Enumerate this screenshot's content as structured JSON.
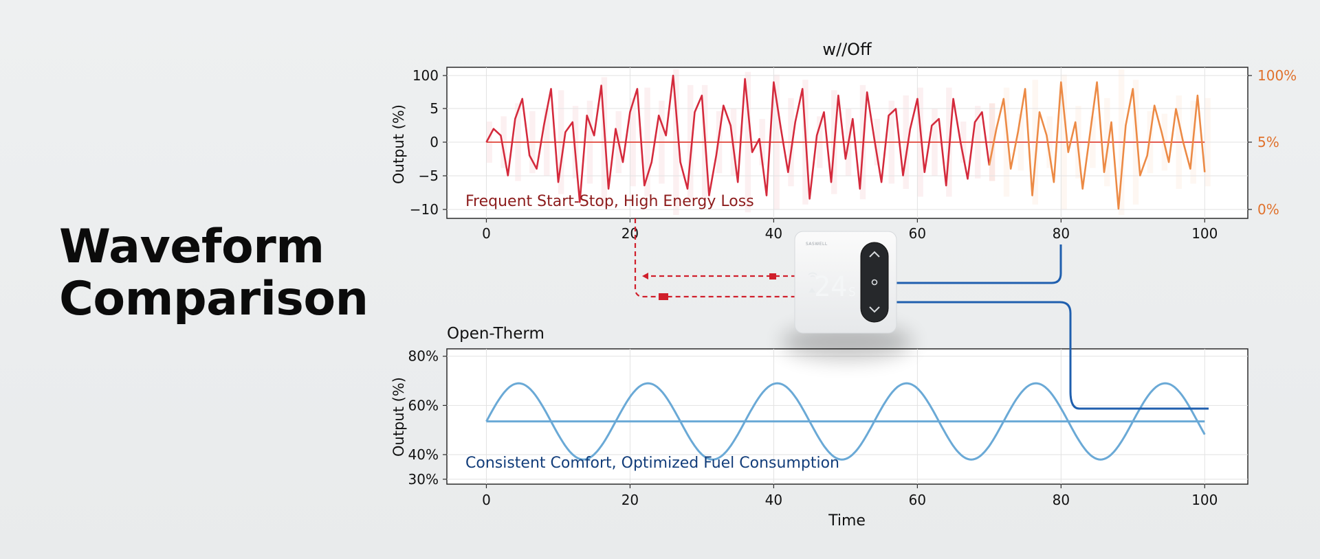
{
  "headline": {
    "line1": "Waveform",
    "line2": "Comparison"
  },
  "thermostat": {
    "brand": "SASWELL",
    "display": "24",
    "display_suffix": "S"
  },
  "colors": {
    "onoff_red": "#d42a3c",
    "onoff_orange": "#ec8a45",
    "opentherm_blue": "#6aa9d6",
    "connector_red": "#d01f2b",
    "connector_blue": "#1f5fae",
    "right_axis": "#e0712c"
  },
  "chart_data": [
    {
      "type": "line",
      "title": "w//Off",
      "xlabel": "",
      "ylabel": "Output (%)",
      "xlim": [
        -5.5,
        106
      ],
      "x_ticks": [
        0,
        20,
        40,
        60,
        80,
        100
      ],
      "y_ticks": [
        {
          "label": "100",
          "level": 2
        },
        {
          "label": "5",
          "level": 1
        },
        {
          "label": "0",
          "level": 0
        },
        {
          "label": "−5",
          "level": -1
        },
        {
          "label": "−10",
          "level": -2
        }
      ],
      "right_ticks": [
        {
          "label": "100%",
          "level": 2
        },
        {
          "label": "5%",
          "level": 0
        },
        {
          "label": "0%",
          "level": -2
        }
      ],
      "annotation": "Frequent Start-Stop, High Energy Loss",
      "grid": true,
      "series": [
        {
          "color": "#d42a3c",
          "x_start": 0,
          "x_step": 1,
          "values": [
            0,
            0.4,
            0.2,
            -1.0,
            0.7,
            1.3,
            -0.4,
            -0.8,
            0.5,
            1.6,
            -1.2,
            0.3,
            0.6,
            -1.8,
            0.8,
            0.2,
            1.7,
            -1.4,
            0.4,
            -0.6,
            0.9,
            1.6,
            -1.3,
            -0.6,
            0.8,
            0.2,
            2.0,
            -0.6,
            -1.4,
            0.9,
            1.4,
            -1.6,
            -0.4,
            1.1,
            0.5,
            -1.2,
            1.9,
            -0.3,
            0.1,
            -1.6,
            1.8,
            0.4,
            -0.9,
            0.6,
            1.6,
            -1.7,
            0.2,
            0.9,
            -1.2,
            1.4,
            -0.5,
            0.7,
            -1.4,
            1.5,
            0.1,
            -1.2,
            0.8,
            1.0,
            -1.0,
            0.4,
            1.3,
            -0.9,
            0.5,
            0.7,
            -1.3,
            1.3,
            0.0,
            -1.1,
            0.6,
            0.9,
            -0.7
          ]
        },
        {
          "color": "#ec8a45",
          "x_start": 70,
          "x_step": 1,
          "values": [
            -0.7,
            0.4,
            1.3,
            -0.8,
            0.3,
            1.6,
            -1.6,
            0.9,
            0.2,
            -1.2,
            1.8,
            -0.3,
            0.6,
            -1.4,
            0.2,
            1.8,
            -0.9,
            0.6,
            -2.0,
            0.5,
            1.6,
            -1.0,
            -0.4,
            1.1,
            0.3,
            -0.6,
            1.0,
            0.0,
            -0.8,
            1.4,
            -0.9
          ]
        }
      ]
    },
    {
      "type": "line",
      "title": "Open-Therm",
      "xlabel": "Time",
      "ylabel": "Output (%)",
      "xlim": [
        -5.5,
        106
      ],
      "ylim": [
        28,
        83
      ],
      "x_ticks": [
        0,
        20,
        40,
        60,
        80,
        100
      ],
      "y_ticks": [
        80,
        60,
        40,
        30
      ],
      "y_tick_suffix": "%",
      "annotation": "Consistent Comfort, Optimized Fuel Consumption",
      "grid": true,
      "series": [
        {
          "kind": "sine",
          "color": "#6aa9d6",
          "center": 53.5,
          "amplitude": 15.5,
          "period": 18,
          "x_range": [
            0,
            100
          ]
        },
        {
          "kind": "constant",
          "color": "#6aa9d6",
          "value": 53.5,
          "x_range": [
            0,
            100
          ]
        }
      ]
    }
  ]
}
